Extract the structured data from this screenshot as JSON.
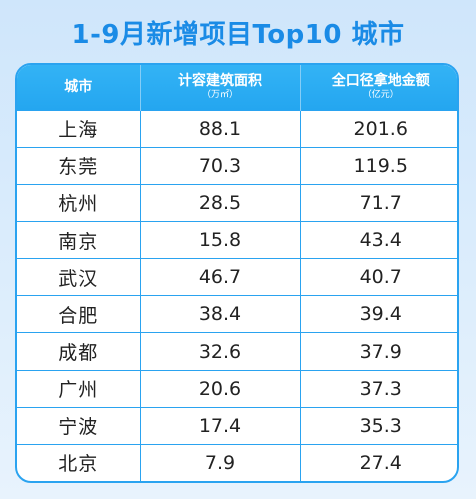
{
  "title": "1-9月新增项目Top10 城市",
  "header": {
    "city": "城市",
    "area_label": "计容建筑面积",
    "area_unit": "（万㎡）",
    "amount_label": "全口径拿地金额",
    "amount_unit": "（亿元）"
  },
  "rows": [
    {
      "city": "上海",
      "area": "88.1",
      "amount": "201.6"
    },
    {
      "city": "东莞",
      "area": "70.3",
      "amount": "119.5"
    },
    {
      "city": "杭州",
      "area": "28.5",
      "amount": "71.7"
    },
    {
      "city": "南京",
      "area": "15.8",
      "amount": "43.4"
    },
    {
      "city": "武汉",
      "area": "46.7",
      "amount": "40.7"
    },
    {
      "city": "合肥",
      "area": "38.4",
      "amount": "39.4"
    },
    {
      "city": "成都",
      "area": "32.6",
      "amount": "37.9"
    },
    {
      "city": "广州",
      "area": "20.6",
      "amount": "37.3"
    },
    {
      "city": "宁波",
      "area": "17.4",
      "amount": "35.3"
    },
    {
      "city": "北京",
      "area": "7.9",
      "amount": "27.4"
    }
  ],
  "colors": {
    "accent": "#2aa3f0",
    "title": "#1a8be6",
    "header_text": "#ffffff"
  }
}
